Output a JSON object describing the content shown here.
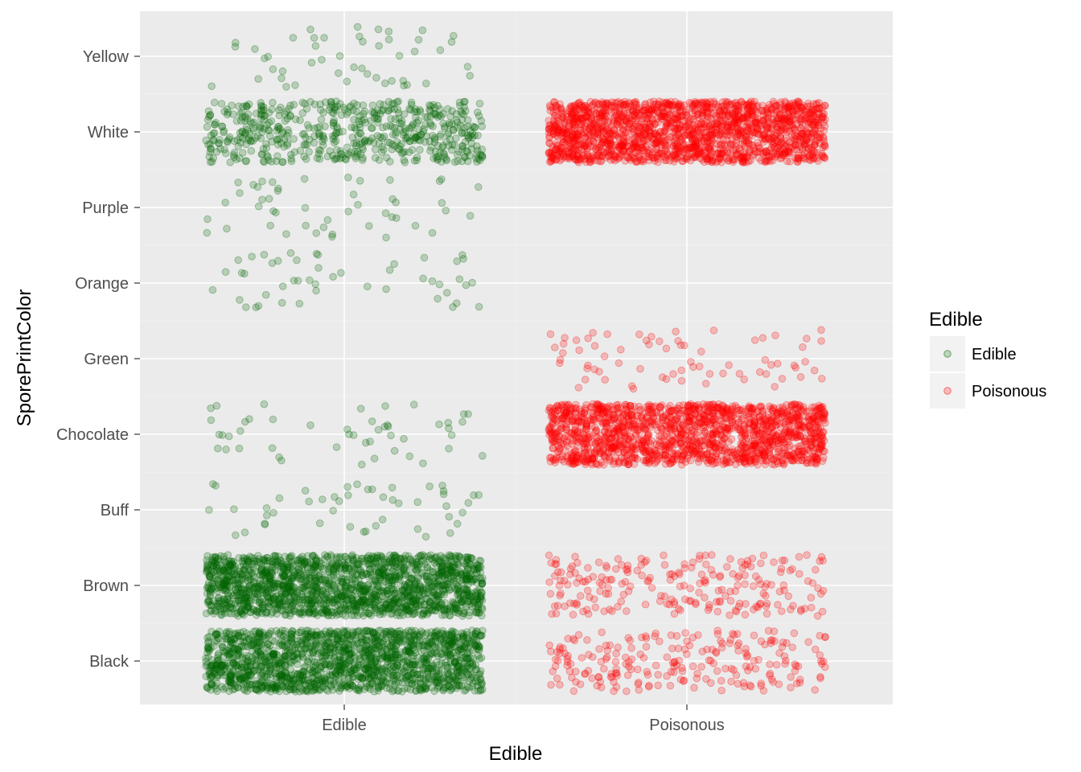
{
  "chart_data": {
    "type": "scatter",
    "subtype": "jitter",
    "xlabel": "Edible",
    "ylabel": "SporePrintColor",
    "x_categories": [
      "Edible",
      "Poisonous"
    ],
    "y_categories": [
      "Black",
      "Brown",
      "Buff",
      "Chocolate",
      "Green",
      "Orange",
      "Purple",
      "White",
      "Yellow"
    ],
    "grid": true,
    "background": "#ebebeb",
    "legend": {
      "title": "Edible",
      "position": "right",
      "entries": [
        "Edible",
        "Poisonous"
      ]
    },
    "series": [
      {
        "name": "Edible",
        "color": "#006400",
        "x": "Edible",
        "counts": {
          "Black": 1648,
          "Brown": 1744,
          "Buff": 48,
          "Chocolate": 48,
          "Green": 0,
          "Orange": 48,
          "Purple": 48,
          "White": 576,
          "Yellow": 48
        }
      },
      {
        "name": "Poisonous",
        "color": "#ff0000",
        "x": "Poisonous",
        "counts": {
          "Black": 224,
          "Brown": 224,
          "Buff": 0,
          "Chocolate": 1584,
          "Green": 72,
          "Orange": 0,
          "Purple": 0,
          "White": 1812,
          "Yellow": 0
        }
      }
    ]
  }
}
